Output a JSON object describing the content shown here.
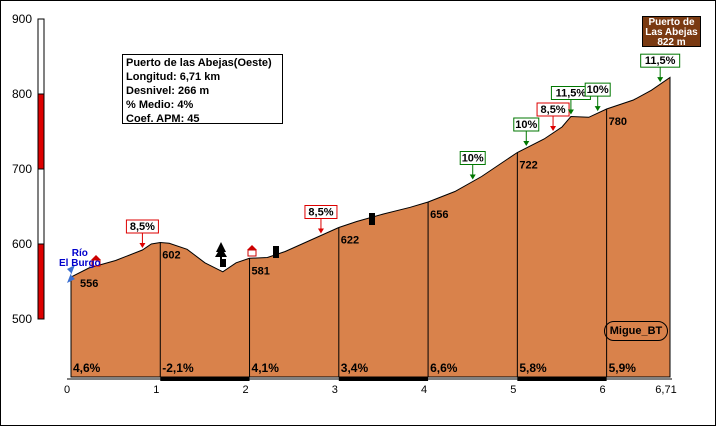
{
  "chart_data": {
    "type": "area",
    "title": "Puerto de las Abejas(Oeste)",
    "stats": {
      "longitud": "Longitud: 6,71 km",
      "desnivel": "Desnivel: 266 m",
      "medio": "% Medio: 4%",
      "coef": "Coef. APM: 45"
    },
    "ylim": [
      500,
      900
    ],
    "yticks": [
      "900",
      "800",
      "700",
      "600",
      "500"
    ],
    "xlim": [
      0,
      6.71
    ],
    "xticks": [
      "0",
      "1",
      "2",
      "3",
      "4",
      "5",
      "6",
      "6,71"
    ],
    "profile_x": [
      0,
      0.2,
      0.5,
      0.8,
      0.9,
      1.0,
      1.1,
      1.3,
      1.5,
      1.7,
      1.85,
      2.0,
      2.2,
      2.4,
      2.7,
      3.0,
      3.2,
      3.5,
      3.8,
      4.0,
      4.3,
      4.6,
      5.0,
      5.3,
      5.5,
      5.6,
      5.8,
      6.0,
      6.3,
      6.5,
      6.71
    ],
    "profile_y": [
      556,
      568,
      578,
      592,
      600,
      602,
      601,
      593,
      575,
      563,
      575,
      581,
      582,
      590,
      606,
      622,
      630,
      640,
      649,
      656,
      670,
      690,
      722,
      740,
      756,
      770,
      769,
      780,
      792,
      805,
      822
    ],
    "segments": [
      {
        "km": 1,
        "altitude": "602",
        "gradient": "4,6%"
      },
      {
        "km": 2,
        "altitude": "581",
        "gradient": "-2,1%"
      },
      {
        "km": 3,
        "altitude": "622",
        "gradient": "4,1%"
      },
      {
        "km": 4,
        "altitude": "656",
        "gradient": "3,4%"
      },
      {
        "km": 5,
        "altitude": "722",
        "gradient": "6,6%"
      },
      {
        "km": 6,
        "altitude": "780",
        "gradient": "5,8%"
      },
      {
        "km": 6.71,
        "altitude": "",
        "gradient": "5,9%"
      }
    ],
    "start_altitude": "556",
    "start_label": [
      "Río",
      "El Burgo"
    ],
    "summit_label": [
      "Puerto de",
      "Las Abejas",
      "822 m"
    ],
    "max_gradient_markers": [
      {
        "x": 0.8,
        "label": "8,5%",
        "color": "#dd0000"
      },
      {
        "x": 2.8,
        "label": "8,5%",
        "color": "#dd0000"
      },
      {
        "x": 4.5,
        "label": "10%",
        "color": "#007700"
      },
      {
        "x": 5.1,
        "label": "10%",
        "color": "#007700"
      },
      {
        "x": 5.4,
        "label": "8,5%",
        "color": "#dd0000"
      },
      {
        "x": 5.6,
        "label": "11,5%",
        "color": "#007700"
      },
      {
        "x": 5.9,
        "label": "10%",
        "color": "#007700"
      },
      {
        "x": 6.6,
        "label": "11,5%",
        "color": "#007700"
      }
    ],
    "signature": "Migue_BT",
    "colors": {
      "fill": "#d9824b",
      "scale_red": "#dd0000",
      "summit_box": "#7a3a12",
      "start_text": "#0000cc"
    }
  }
}
